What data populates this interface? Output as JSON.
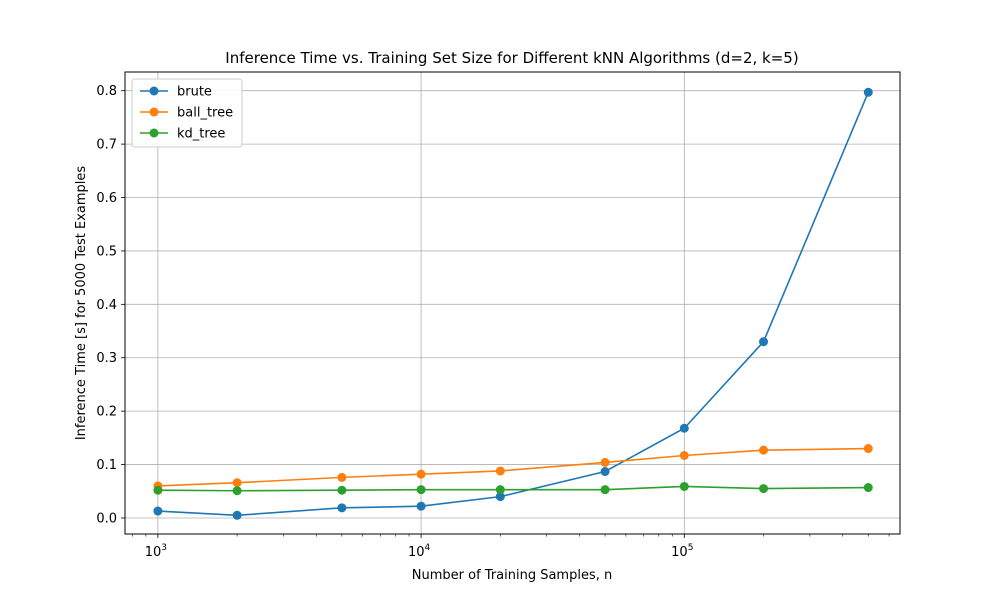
{
  "chart_data": {
    "type": "line",
    "title": "Inference Time vs. Training Set Size for Different kNN Algorithms (d=2, k=5)",
    "xlabel": "Number of Training Samples, n",
    "ylabel": "Inference Time [s] for 5000 Test Examples",
    "xscale": "log",
    "xlim": [
      750,
      660000
    ],
    "ylim": [
      -0.03,
      0.835
    ],
    "grid": true,
    "legend_position": "upper-left",
    "x": [
      1000,
      2000,
      5000,
      10000,
      20000,
      50000,
      100000,
      200000,
      500000
    ],
    "series": [
      {
        "name": "brute",
        "color": "#1f77b4",
        "values": [
          0.013,
          0.005,
          0.019,
          0.022,
          0.04,
          0.087,
          0.168,
          0.33,
          0.797
        ]
      },
      {
        "name": "ball_tree",
        "color": "#ff7f0e",
        "values": [
          0.06,
          0.066,
          0.076,
          0.082,
          0.088,
          0.104,
          0.117,
          0.127,
          0.13
        ]
      },
      {
        "name": "kd_tree",
        "color": "#2ca02c",
        "values": [
          0.052,
          0.051,
          0.052,
          0.053,
          0.053,
          0.053,
          0.059,
          0.055,
          0.057
        ]
      }
    ],
    "x_ticks": [
      {
        "value": 1000,
        "base": "10",
        "exp": "3"
      },
      {
        "value": 10000,
        "base": "10",
        "exp": "4"
      },
      {
        "value": 100000,
        "base": "10",
        "exp": "5"
      }
    ],
    "y_ticks": [
      {
        "value": 0.0,
        "label": "0.0"
      },
      {
        "value": 0.1,
        "label": "0.1"
      },
      {
        "value": 0.2,
        "label": "0.2"
      },
      {
        "value": 0.3,
        "label": "0.3"
      },
      {
        "value": 0.4,
        "label": "0.4"
      },
      {
        "value": 0.5,
        "label": "0.5"
      },
      {
        "value": 0.6,
        "label": "0.6"
      },
      {
        "value": 0.7,
        "label": "0.7"
      },
      {
        "value": 0.8,
        "label": "0.8"
      }
    ]
  }
}
